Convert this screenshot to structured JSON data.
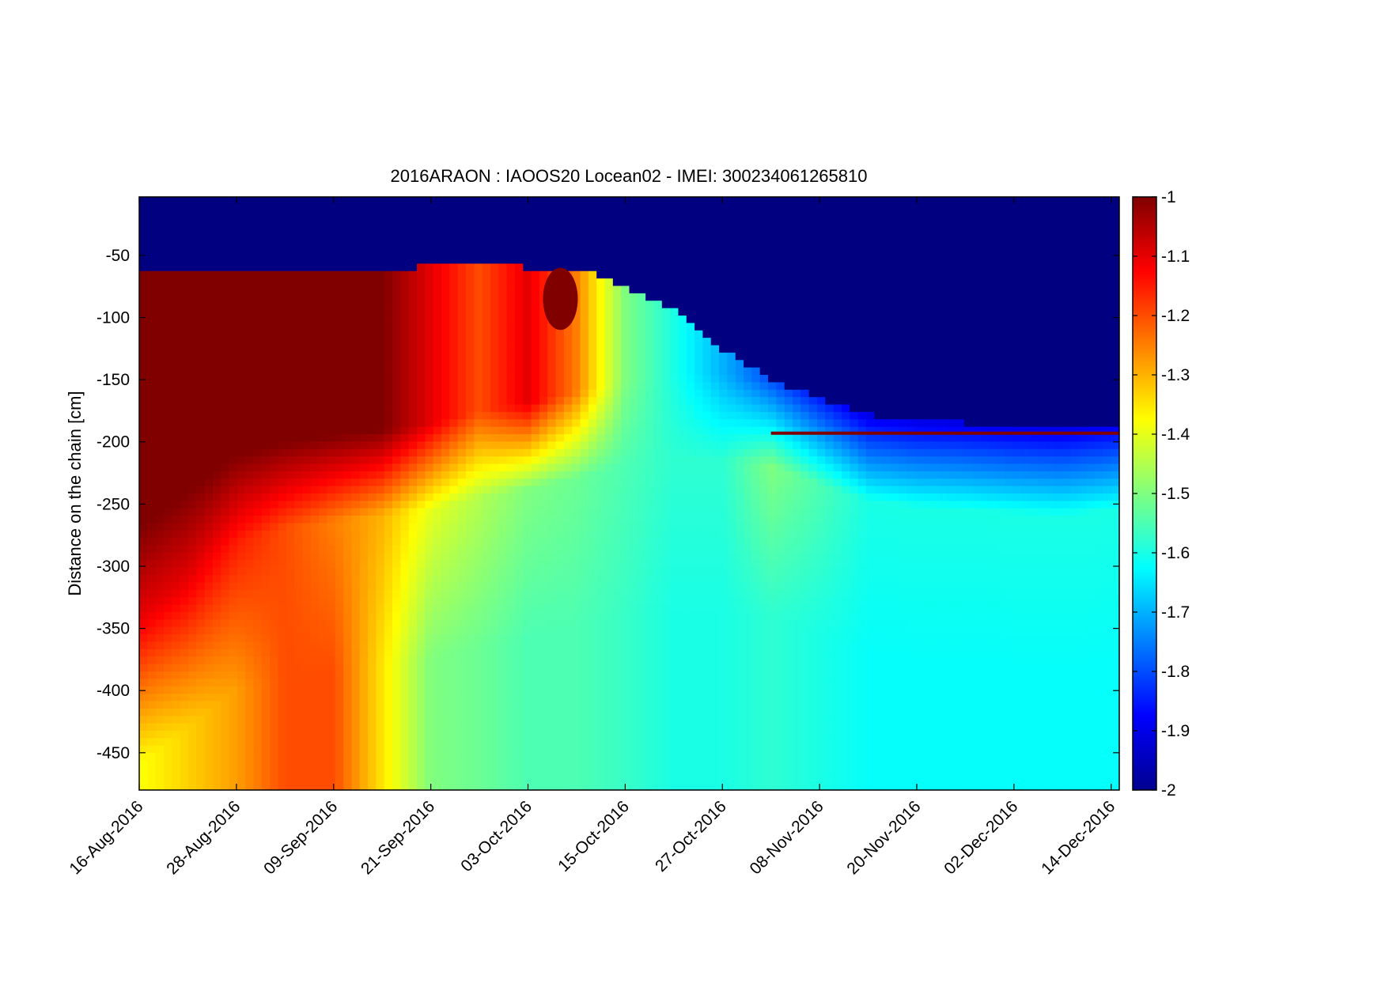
{
  "chart_data": {
    "type": "heatmap",
    "title": "2016ARAON : IAOOS20  Locean02 - IMEI: 300234061265810",
    "xlabel": "",
    "ylabel": "Distance on the chain [cm]",
    "x_tick_labels": [
      "16-Aug-2016",
      "28-Aug-2016",
      "09-Sep-2016",
      "21-Sep-2016",
      "03-Oct-2016",
      "15-Oct-2016",
      "27-Oct-2016",
      "08-Nov-2016",
      "20-Nov-2016",
      "02-Dec-2016",
      "14-Dec-2016"
    ],
    "x_range": [
      "16-Aug-2016",
      "15-Dec-2016"
    ],
    "y_ticks": [
      -50,
      -100,
      -150,
      -200,
      -250,
      -300,
      -350,
      -400,
      -450
    ],
    "y_range": [
      -480,
      -3
    ],
    "colorbar": {
      "colormap": "jet",
      "min": -2,
      "max": -1,
      "ticks": [
        -1,
        -1.1,
        -1.2,
        -1.3,
        -1.4,
        -1.5,
        -1.6,
        -1.7,
        -1.8,
        -1.9,
        -2
      ]
    },
    "z_description": "temperature along the chain",
    "grid": false,
    "profile_columns": [
      "date",
      "upper_boundary_cm",
      "lower_boundary_cm",
      "value_upper_band",
      "value_mid",
      "value_deep"
    ],
    "profiles": [
      [
        "16-Aug-2016",
        -65,
        -270,
        -1.0,
        -1.1,
        -1.38
      ],
      [
        "22-Aug-2016",
        -63,
        -240,
        -1.0,
        -1.1,
        -1.33
      ],
      [
        "28-Aug-2016",
        -62,
        -210,
        -1.0,
        -1.15,
        -1.28
      ],
      [
        "03-Sep-2016",
        -60,
        -200,
        -1.0,
        -1.2,
        -1.2
      ],
      [
        "09-Sep-2016",
        -62,
        -195,
        -1.0,
        -1.25,
        -1.2
      ],
      [
        "15-Sep-2016",
        -63,
        -190,
        -1.0,
        -1.3,
        -1.35
      ],
      [
        "21-Sep-2016",
        -58,
        -185,
        -1.1,
        -1.4,
        -1.5
      ],
      [
        "27-Sep-2016",
        -55,
        -175,
        -1.2,
        -1.45,
        -1.52
      ],
      [
        "03-Oct-2016",
        -60,
        -168,
        -1.1,
        -1.5,
        -1.55
      ],
      [
        "09-Oct-2016",
        -60,
        -160,
        -1.25,
        -1.52,
        -1.55
      ],
      [
        "15-Oct-2016",
        -75,
        -150,
        -1.5,
        -1.55,
        -1.57
      ],
      [
        "21-Oct-2016",
        -95,
        -145,
        -1.6,
        -1.58,
        -1.6
      ],
      [
        "27-Oct-2016",
        -125,
        -145,
        -1.7,
        -1.58,
        -1.6
      ],
      [
        "02-Nov-2016",
        -150,
        -150,
        -1.8,
        -1.5,
        -1.58
      ],
      [
        "08-Nov-2016",
        -165,
        -165,
        -1.85,
        -1.55,
        -1.6
      ],
      [
        "14-Nov-2016",
        -178,
        -178,
        -1.9,
        -1.6,
        -1.62
      ],
      [
        "20-Nov-2016",
        -183,
        -183,
        -1.9,
        -1.6,
        -1.62
      ],
      [
        "26-Nov-2016",
        -185,
        -185,
        -1.9,
        -1.6,
        -1.62
      ],
      [
        "02-Dec-2016",
        -188,
        -188,
        -1.9,
        -1.6,
        -1.62
      ],
      [
        "08-Dec-2016",
        -190,
        -190,
        -1.9,
        -1.6,
        -1.62
      ],
      [
        "15-Dec-2016",
        -185,
        -185,
        -1.9,
        -1.6,
        -1.62
      ]
    ],
    "near_surface_value": -2.0,
    "features": [
      {
        "type": "spike",
        "date": "25-Aug-2016",
        "depth_cm": -245,
        "value": -1.0
      },
      {
        "type": "plume",
        "date": "07-Oct-2016",
        "depth_range_cm": [
          -60,
          -110
        ],
        "value": -1.0
      },
      {
        "type": "line",
        "date_range": [
          "02-Nov-2016",
          "15-Dec-2016"
        ],
        "depth_cm": -193,
        "value": -1.0
      }
    ]
  }
}
